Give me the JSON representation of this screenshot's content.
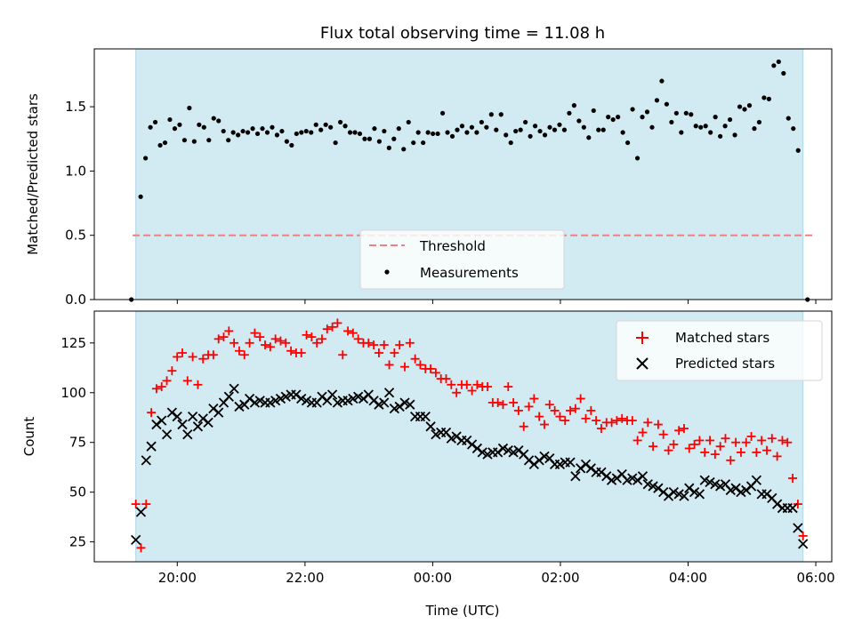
{
  "chart_data": {
    "type": "scatter",
    "title": "Flux total observing time = 11.08 h",
    "xlabel": "Time (UTC)",
    "xlim": [
      18.7,
      6.25
    ],
    "xticks": [
      "20:00",
      "22:00",
      "00:00",
      "02:00",
      "04:00",
      "06:00"
    ],
    "shaded_region": [
      19.35,
      5.8
    ],
    "shade_color": "#add8e6",
    "top": {
      "ylabel": "Matched/Predicted stars",
      "ylim": [
        0,
        1.95
      ],
      "yticks": [
        "0.0",
        "0.5",
        "1.0",
        "1.5"
      ],
      "threshold": 0.5,
      "threshold_color": "#f08080",
      "legend": {
        "placement": "lower-center",
        "threshold_label": "Threshold",
        "measurements_label": "Measurements"
      },
      "ratio": [
        0.0,
        0.8,
        1.1,
        1.34,
        1.38,
        1.2,
        1.22,
        1.4,
        1.33,
        1.36,
        1.24,
        1.49,
        1.23,
        1.36,
        1.34,
        1.24,
        1.41,
        1.39,
        1.31,
        1.24,
        1.3,
        1.28,
        1.31,
        1.3,
        1.33,
        1.29,
        1.33,
        1.3,
        1.34,
        1.28,
        1.31,
        1.23,
        1.2,
        1.29,
        1.3,
        1.31,
        1.3,
        1.36,
        1.32,
        1.36,
        1.34,
        1.22,
        1.38,
        1.35,
        1.3,
        1.3,
        1.29,
        1.25,
        1.25,
        1.33,
        1.23,
        1.31,
        1.18,
        1.25,
        1.33,
        1.17,
        1.38,
        1.22,
        1.3,
        1.22,
        1.3,
        1.29,
        1.29,
        1.45,
        1.3,
        1.27,
        1.32,
        1.35,
        1.3,
        1.34,
        1.3,
        1.38,
        1.34,
        1.44,
        1.32,
        1.44,
        1.28,
        1.22,
        1.31,
        1.32,
        1.38,
        1.27,
        1.35,
        1.31,
        1.28,
        1.34,
        1.32,
        1.36,
        1.32,
        1.45,
        1.51,
        1.39,
        1.34,
        1.26,
        1.47,
        1.32,
        1.32,
        1.42,
        1.4,
        1.42,
        1.3,
        1.22,
        1.48,
        1.1,
        1.42,
        1.46,
        1.34,
        1.55,
        1.7,
        1.52,
        1.38,
        1.45,
        1.3,
        1.45,
        1.44,
        1.35,
        1.34,
        1.35,
        1.3,
        1.42,
        1.27,
        1.35,
        1.4,
        1.28,
        1.5,
        1.48,
        1.51,
        1.33,
        1.38,
        1.57,
        1.56,
        1.82,
        1.85,
        1.76,
        1.41,
        1.33,
        1.16,
        0.0
      ]
    },
    "bottom": {
      "ylabel": "Count",
      "ylim": [
        15,
        141
      ],
      "yticks": [
        "25",
        "50",
        "75",
        "100",
        "125"
      ],
      "legend": {
        "placement": "upper-right",
        "matched_label": "Matched stars",
        "predicted_label": "Predicted stars"
      },
      "matched_color": "#ff0000",
      "predicted_color": "#000000",
      "matched": [
        44,
        22,
        44,
        90,
        102,
        103,
        106,
        111,
        118,
        120,
        106,
        118,
        104,
        117,
        119,
        119,
        127,
        128,
        131,
        125,
        121,
        119,
        125,
        130,
        128,
        124,
        123,
        127,
        126,
        125,
        121,
        120,
        120,
        129,
        128,
        125,
        127,
        132,
        133,
        135,
        119,
        131,
        130,
        127,
        125,
        125,
        124,
        120,
        124,
        114,
        120,
        124,
        113,
        125,
        117,
        114,
        112,
        112,
        110,
        107,
        107,
        104,
        100,
        104,
        104,
        101,
        104,
        103,
        103,
        95,
        95,
        94,
        103,
        95,
        91,
        83,
        93,
        97,
        88,
        84,
        94,
        91,
        88,
        86,
        91,
        92,
        97,
        87,
        91,
        86,
        82,
        85,
        85,
        86,
        87,
        86,
        86,
        76,
        80,
        85,
        73,
        84,
        79,
        71,
        74,
        81,
        82,
        72,
        74,
        76,
        70,
        76,
        69,
        73,
        77,
        66,
        75,
        70,
        75,
        78,
        70,
        76,
        71,
        77,
        68,
        76,
        75,
        57,
        44,
        28
      ],
      "predicted": [
        26,
        40,
        66,
        73,
        84,
        86,
        79,
        90,
        88,
        84,
        79,
        88,
        83,
        87,
        85,
        92,
        90,
        95,
        98,
        102,
        93,
        94,
        97,
        95,
        96,
        95,
        95,
        96,
        97,
        98,
        99,
        99,
        97,
        96,
        95,
        95,
        98,
        96,
        99,
        95,
        96,
        96,
        97,
        98,
        97,
        99,
        96,
        94,
        95,
        100,
        92,
        93,
        95,
        94,
        88,
        88,
        88,
        83,
        79,
        80,
        80,
        77,
        78,
        76,
        76,
        74,
        72,
        70,
        69,
        70,
        70,
        72,
        71,
        70,
        71,
        69,
        66,
        64,
        66,
        68,
        67,
        64,
        64,
        65,
        65,
        58,
        62,
        64,
        62,
        60,
        60,
        58,
        56,
        57,
        59,
        56,
        57,
        56,
        58,
        54,
        53,
        52,
        50,
        48,
        50,
        49,
        48,
        52,
        50,
        49,
        56,
        55,
        54,
        53,
        54,
        51,
        52,
        50,
        51,
        53,
        56,
        49,
        49,
        47,
        44,
        42,
        42,
        42,
        32,
        24
      ]
    }
  }
}
